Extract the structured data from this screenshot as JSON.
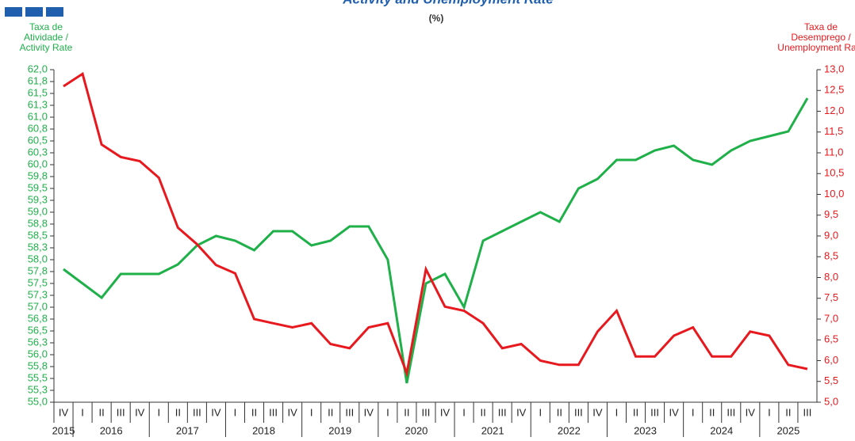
{
  "chart_data": {
    "type": "line",
    "title": "Activity and Unemployment Rate",
    "subtitle": "(%)",
    "y_label": [
      "Taxa de",
      "Atividade /",
      "Activity Rate"
    ],
    "y2_label": [
      "Taxa de",
      "Desemprego /",
      "Unemployment Rate"
    ],
    "categories": [
      "IV",
      "I",
      "II",
      "III",
      "IV",
      "I",
      "II",
      "III",
      "IV",
      "I",
      "II",
      "III",
      "IV",
      "I",
      "II",
      "III",
      "IV",
      "I",
      "II",
      "III",
      "IV",
      "I",
      "II",
      "III",
      "IV",
      "I",
      "II",
      "III",
      "IV",
      "I",
      "II",
      "III",
      "IV",
      "I",
      "II",
      "III",
      "IV",
      "I",
      "II",
      "III"
    ],
    "x_groups": [
      "2015",
      "2016",
      "2017",
      "2018",
      "2019",
      "2020",
      "2021",
      "2022",
      "2023",
      "2024",
      "2025"
    ],
    "series": [
      {
        "name": "Activity Rate",
        "color": "#1fb04a",
        "axis": "y",
        "values": [
          57.8,
          57.5,
          57.2,
          57.7,
          57.7,
          57.7,
          57.9,
          58.3,
          58.5,
          58.4,
          58.2,
          58.6,
          58.6,
          58.3,
          58.4,
          58.7,
          58.7,
          58.0,
          55.4,
          57.5,
          57.7,
          57.0,
          58.4,
          58.6,
          58.8,
          59.0,
          58.8,
          59.5,
          59.7,
          60.1,
          60.1,
          60.3,
          60.4,
          60.1,
          60.0,
          60.3,
          60.5,
          60.6,
          60.7,
          61.4
        ]
      },
      {
        "name": "Unemployment Rate",
        "color": "#e8191e",
        "axis": "y2",
        "values": [
          12.6,
          12.9,
          11.2,
          10.9,
          10.8,
          10.4,
          9.2,
          8.8,
          8.3,
          8.1,
          7.0,
          6.9,
          6.8,
          6.9,
          6.4,
          6.3,
          6.8,
          6.9,
          5.7,
          8.2,
          7.3,
          7.2,
          6.9,
          6.3,
          6.4,
          6.0,
          5.9,
          5.9,
          6.7,
          7.2,
          6.1,
          6.1,
          6.6,
          6.8,
          6.1,
          6.1,
          6.7,
          6.6,
          5.9,
          5.8
        ]
      }
    ],
    "ylim": [
      55,
      62
    ],
    "yticks": [
      {
        "value": 55,
        "label": "55,0"
      },
      {
        "value": 55.25,
        "label": "55,3"
      },
      {
        "value": 55.5,
        "label": "55,5"
      },
      {
        "value": 55.75,
        "label": "55,8"
      },
      {
        "value": 56,
        "label": "56,0"
      },
      {
        "value": 56.25,
        "label": "56,3"
      },
      {
        "value": 56.5,
        "label": "56,5"
      },
      {
        "value": 56.75,
        "label": "56,8"
      },
      {
        "value": 57,
        "label": "57,0"
      },
      {
        "value": 57.25,
        "label": "57,3"
      },
      {
        "value": 57.5,
        "label": "57,5"
      },
      {
        "value": 57.75,
        "label": "57,8"
      },
      {
        "value": 58,
        "label": "58,0"
      },
      {
        "value": 58.25,
        "label": "58,3"
      },
      {
        "value": 58.5,
        "label": "58,5"
      },
      {
        "value": 58.75,
        "label": "58,8"
      },
      {
        "value": 59,
        "label": "59,0"
      },
      {
        "value": 59.25,
        "label": "59,3"
      },
      {
        "value": 59.5,
        "label": "59,5"
      },
      {
        "value": 59.75,
        "label": "59,8"
      },
      {
        "value": 60,
        "label": "60,0"
      },
      {
        "value": 60.25,
        "label": "60,3"
      },
      {
        "value": 60.5,
        "label": "60,5"
      },
      {
        "value": 60.75,
        "label": "60,8"
      },
      {
        "value": 61,
        "label": "61,0"
      },
      {
        "value": 61.25,
        "label": "61,3"
      },
      {
        "value": 61.5,
        "label": "61,5"
      },
      {
        "value": 61.75,
        "label": "61,8"
      },
      {
        "value": 62,
        "label": "62,0"
      }
    ],
    "y2lim": [
      5,
      13
    ],
    "y2ticks": [
      {
        "value": 5,
        "label": "5,0"
      },
      {
        "value": 5.5,
        "label": "5,5"
      },
      {
        "value": 6,
        "label": "6,0"
      },
      {
        "value": 6.5,
        "label": "6,5"
      },
      {
        "value": 7,
        "label": "7,0"
      },
      {
        "value": 7.5,
        "label": "7,5"
      },
      {
        "value": 8,
        "label": "8,0"
      },
      {
        "value": 8.5,
        "label": "8,5"
      },
      {
        "value": 9,
        "label": "9,0"
      },
      {
        "value": 9.5,
        "label": "9,5"
      },
      {
        "value": 10,
        "label": "10,0"
      },
      {
        "value": 10.5,
        "label": "10,5"
      },
      {
        "value": 11,
        "label": "11,0"
      },
      {
        "value": 11.5,
        "label": "11,5"
      },
      {
        "value": 12,
        "label": "12,0"
      },
      {
        "value": 12.5,
        "label": "12,5"
      },
      {
        "value": 13,
        "label": "13,0"
      }
    ],
    "grid": false
  }
}
